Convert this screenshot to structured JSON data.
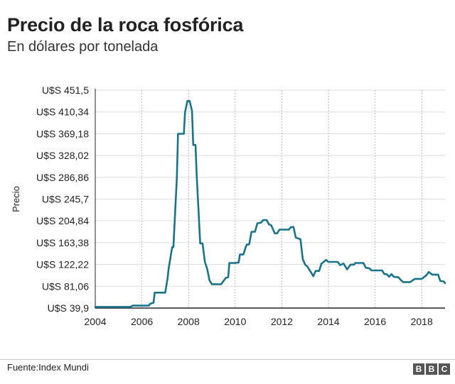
{
  "header": {
    "title": "Precio de la roca fosfórica",
    "subtitle": "En dólares por tonelada"
  },
  "footer": {
    "source": "Fuente:Index Mundi",
    "logo_letters": [
      "B",
      "B",
      "C"
    ]
  },
  "colors": {
    "line": "#1a7489",
    "grid": "#dddddd",
    "axis": "#222222",
    "logo": "#555555"
  },
  "chart_data": {
    "type": "line",
    "title": "Precio de la roca fosfórica",
    "subtitle": "En dólares por tonelada",
    "xlabel": "",
    "ylabel": "Precio",
    "xlim": [
      2004,
      2019
    ],
    "ylim": [
      39.9,
      451.5
    ],
    "grid": true,
    "x_ticks": [
      2004,
      2006,
      2008,
      2010,
      2012,
      2014,
      2016,
      2018
    ],
    "x_tick_labels": [
      "2004",
      "2006",
      "2008",
      "2010",
      "2012",
      "2014",
      "2016",
      "2018"
    ],
    "y_ticks": [
      39.9,
      81.06,
      122.22,
      163.38,
      204.84,
      245.7,
      286.86,
      328.02,
      369.18,
      410.34,
      451.5
    ],
    "y_tick_labels": [
      "U$S 39,9",
      "U$S 81,06",
      "U$S 122,22",
      "U$S 163,38",
      "U$S 204,84",
      "U$S 245,7",
      "U$S 286,86",
      "U$S 328,02",
      "U$S 369,18",
      "U$S 410,34",
      "U$S 451,5"
    ],
    "series": [
      {
        "points": [
          [
            2004.0,
            42.0
          ],
          [
            2005.5,
            42.0
          ],
          [
            2005.6,
            44.5
          ],
          [
            2006.3,
            44.5
          ],
          [
            2006.35,
            48.0
          ],
          [
            2006.5,
            50.0
          ],
          [
            2006.55,
            69.0
          ],
          [
            2007.0,
            69.0
          ],
          [
            2007.1,
            96.0
          ],
          [
            2007.15,
            115.0
          ],
          [
            2007.3,
            155.0
          ],
          [
            2007.35,
            155.0
          ],
          [
            2007.5,
            287.0
          ],
          [
            2007.55,
            369.0
          ],
          [
            2007.8,
            369.0
          ],
          [
            2007.85,
            410.0
          ],
          [
            2007.95,
            431.0
          ],
          [
            2008.05,
            431.0
          ],
          [
            2008.15,
            412.0
          ],
          [
            2008.2,
            348.0
          ],
          [
            2008.3,
            348.0
          ],
          [
            2008.35,
            290.0
          ],
          [
            2008.5,
            162.0
          ],
          [
            2008.6,
            162.0
          ],
          [
            2008.7,
            127.0
          ],
          [
            2008.8,
            114.0
          ],
          [
            2008.9,
            92.0
          ],
          [
            2009.0,
            85.0
          ],
          [
            2009.4,
            85.0
          ],
          [
            2009.6,
            97.0
          ],
          [
            2009.7,
            98.0
          ],
          [
            2009.75,
            125.0
          ],
          [
            2010.0,
            125.0
          ],
          [
            2010.15,
            126.0
          ],
          [
            2010.2,
            141.0
          ],
          [
            2010.35,
            141.0
          ],
          [
            2010.45,
            155.0
          ],
          [
            2010.5,
            160.0
          ],
          [
            2010.6,
            160.0
          ],
          [
            2010.7,
            184.0
          ],
          [
            2010.85,
            184.0
          ],
          [
            2010.95,
            200.0
          ],
          [
            2011.1,
            201.0
          ],
          [
            2011.2,
            206.0
          ],
          [
            2011.35,
            206.0
          ],
          [
            2011.45,
            198.0
          ],
          [
            2011.55,
            196.0
          ],
          [
            2011.7,
            181.0
          ],
          [
            2011.8,
            181.0
          ],
          [
            2011.9,
            188.0
          ],
          [
            2012.0,
            188.0
          ],
          [
            2012.3,
            188.0
          ],
          [
            2012.4,
            193.0
          ],
          [
            2012.5,
            193.0
          ],
          [
            2012.6,
            173.0
          ],
          [
            2012.8,
            170.0
          ],
          [
            2012.9,
            132.0
          ],
          [
            2013.0,
            122.0
          ],
          [
            2013.1,
            118.0
          ],
          [
            2013.3,
            104.0
          ],
          [
            2013.35,
            100.0
          ],
          [
            2013.45,
            110.0
          ],
          [
            2013.6,
            110.0
          ],
          [
            2013.7,
            124.0
          ],
          [
            2013.8,
            127.0
          ],
          [
            2013.9,
            131.0
          ],
          [
            2014.0,
            127.0
          ],
          [
            2014.05,
            127.0
          ],
          [
            2014.4,
            127.0
          ],
          [
            2014.5,
            121.0
          ],
          [
            2014.65,
            124.0
          ],
          [
            2014.8,
            113.0
          ],
          [
            2014.95,
            122.0
          ],
          [
            2015.1,
            122.0
          ],
          [
            2015.15,
            125.0
          ],
          [
            2015.5,
            125.0
          ],
          [
            2015.6,
            116.0
          ],
          [
            2015.75,
            115.0
          ],
          [
            2015.85,
            111.0
          ],
          [
            2016.3,
            111.0
          ],
          [
            2016.4,
            104.0
          ],
          [
            2016.5,
            104.0
          ],
          [
            2016.6,
            99.0
          ],
          [
            2016.7,
            104.0
          ],
          [
            2016.8,
            99.0
          ],
          [
            2017.0,
            98.0
          ],
          [
            2017.1,
            93.0
          ],
          [
            2017.2,
            89.0
          ],
          [
            2017.5,
            89.0
          ],
          [
            2017.7,
            95.0
          ],
          [
            2017.8,
            95.0
          ],
          [
            2018.0,
            95.0
          ],
          [
            2018.2,
            102.0
          ],
          [
            2018.3,
            108.0
          ],
          [
            2018.45,
            103.0
          ],
          [
            2018.7,
            103.0
          ],
          [
            2018.8,
            91.0
          ],
          [
            2018.95,
            90.0
          ],
          [
            2019.0,
            87.0
          ]
        ]
      }
    ]
  }
}
